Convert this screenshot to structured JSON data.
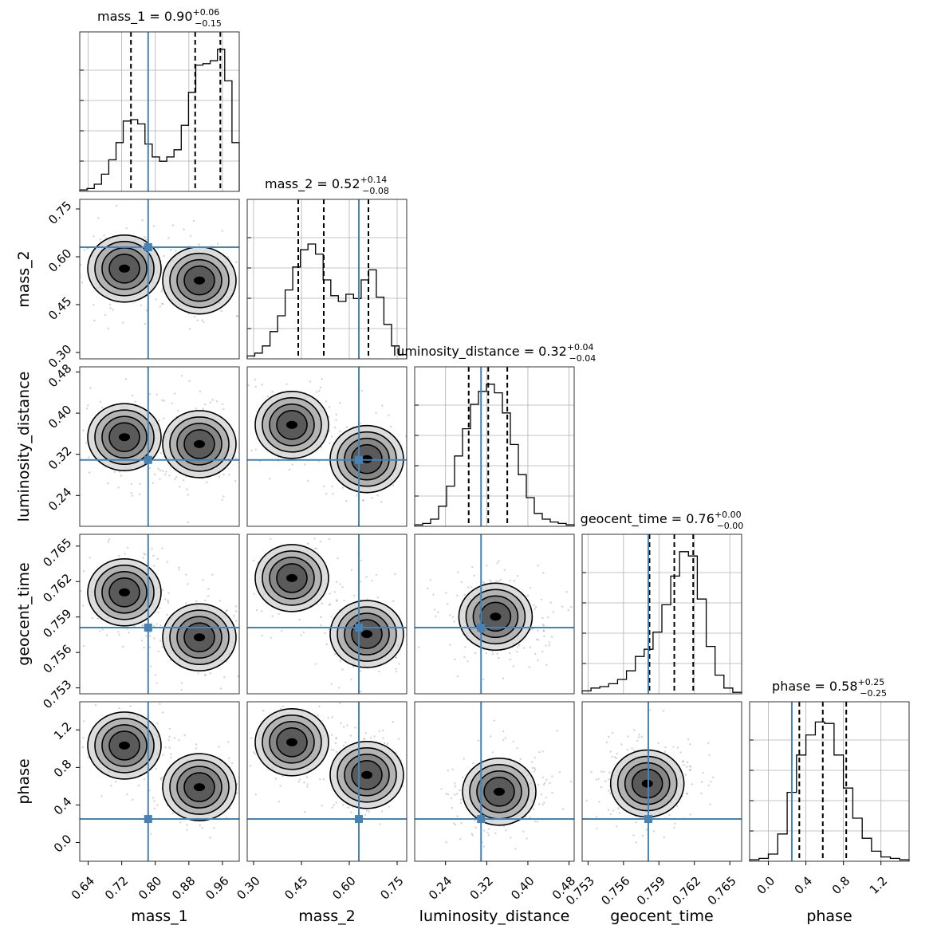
{
  "chart_data": {
    "type": "corner",
    "parameters": [
      {
        "key": "mass_1",
        "label": "mass_1",
        "title_name": "mass_1 = ",
        "title_value": "0.90",
        "title_plus": "+0.06",
        "title_minus": "−0.15",
        "range": [
          0.62,
          1.0
        ],
        "ticks": [
          0.64,
          0.72,
          0.8,
          0.88,
          0.96
        ],
        "tick_labels": [
          "0.64",
          "0.72",
          "0.80",
          "0.88",
          "0.96"
        ],
        "truth": 0.783,
        "quantiles": [
          0.742,
          0.895,
          0.955
        ],
        "hist_counts": [
          0.01,
          0.02,
          0.05,
          0.12,
          0.22,
          0.34,
          0.49,
          0.5,
          0.47,
          0.33,
          0.24,
          0.21,
          0.24,
          0.29,
          0.46,
          0.69,
          0.88,
          0.89,
          0.91,
          0.99,
          0.77,
          0.34
        ]
      },
      {
        "key": "mass_2",
        "label": "mass_2",
        "title_name": "mass_2 = ",
        "title_value": "0.52",
        "title_plus": "+0.14",
        "title_minus": "−0.08",
        "range": [
          0.28,
          0.78
        ],
        "ticks": [
          0.3,
          0.45,
          0.6,
          0.75
        ],
        "tick_labels": [
          "0.30",
          "0.45",
          "0.60",
          "0.75"
        ],
        "truth": 0.63,
        "quantiles": [
          0.44,
          0.52,
          0.66
        ],
        "hist_counts": [
          0.02,
          0.04,
          0.09,
          0.19,
          0.3,
          0.48,
          0.64,
          0.76,
          0.8,
          0.73,
          0.55,
          0.44,
          0.4,
          0.45,
          0.42,
          0.55,
          0.62,
          0.43,
          0.24,
          0.09,
          0.03
        ]
      },
      {
        "key": "luminosity_distance",
        "label": "luminosity_distance",
        "title_name": "luminosity_distance = ",
        "title_value": "0.32",
        "title_plus": "+0.04",
        "title_minus": "−0.04",
        "range": [
          0.18,
          0.49
        ],
        "ticks": [
          0.24,
          0.32,
          0.4,
          0.48
        ],
        "tick_labels": [
          "0.24",
          "0.32",
          "0.40",
          "0.48"
        ],
        "truth": 0.309,
        "quantiles": [
          0.285,
          0.323,
          0.36
        ],
        "hist_counts": [
          0.01,
          0.02,
          0.05,
          0.14,
          0.28,
          0.49,
          0.68,
          0.85,
          0.94,
          0.99,
          0.93,
          0.79,
          0.57,
          0.36,
          0.2,
          0.09,
          0.05,
          0.03,
          0.02,
          0.01
        ]
      },
      {
        "key": "geocent_time",
        "label": "geocent_time",
        "title_name": "geocent_time = ",
        "title_value": "0.76",
        "title_plus": "+0.00",
        "title_minus": "−0.00",
        "range": [
          0.7525,
          0.766
        ],
        "ticks": [
          0.753,
          0.756,
          0.759,
          0.762,
          0.765
        ],
        "tick_labels": [
          "0.753",
          "0.756",
          "0.759",
          "0.762",
          "0.765"
        ],
        "truth": 0.7581,
        "quantiles": [
          0.7582,
          0.7603,
          0.7619
        ],
        "hist_counts": [
          0.02,
          0.04,
          0.05,
          0.07,
          0.1,
          0.16,
          0.26,
          0.31,
          0.43,
          0.62,
          0.82,
          0.99,
          0.96,
          0.66,
          0.33,
          0.13,
          0.04,
          0.01
        ]
      },
      {
        "key": "phase",
        "label": "phase",
        "title_name": "phase = ",
        "title_value": "0.58",
        "title_plus": "+0.25",
        "title_minus": "−0.25",
        "range": [
          -0.2,
          1.5
        ],
        "ticks": [
          0.0,
          0.4,
          0.8,
          1.2
        ],
        "tick_labels": [
          "0.0",
          "0.4",
          "0.8",
          "1.2"
        ],
        "truth": 0.25,
        "quantiles": [
          0.33,
          0.58,
          0.83
        ],
        "hist_counts": [
          0.01,
          0.02,
          0.05,
          0.19,
          0.48,
          0.74,
          0.88,
          0.97,
          0.96,
          0.74,
          0.51,
          0.3,
          0.16,
          0.07,
          0.03,
          0.02,
          0.01
        ]
      }
    ]
  },
  "colors": {
    "truth": "#4682b4",
    "contour": "#000000",
    "scatter_points": "#808080",
    "grid": "#b0b0b0",
    "density_dark": "#000000"
  },
  "styles": {
    "quantile_line": "dashed",
    "grid": true,
    "contour_levels": 4
  }
}
